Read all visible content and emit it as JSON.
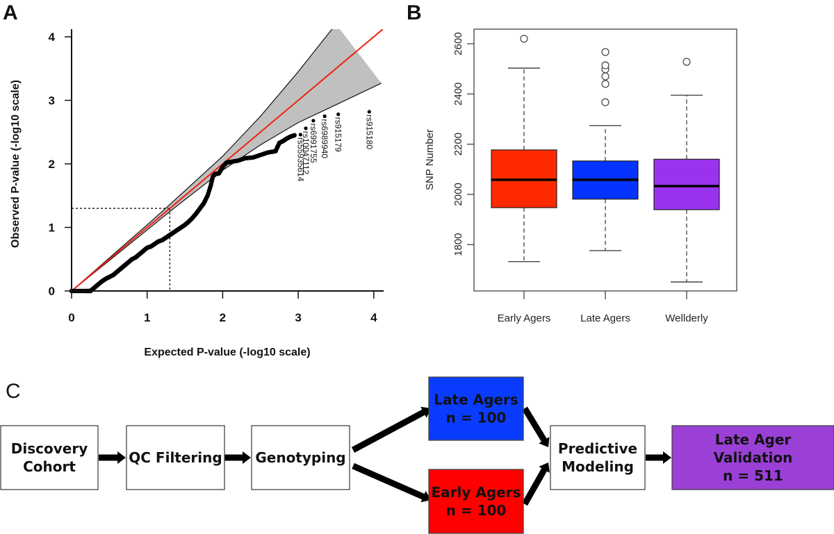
{
  "figure": {
    "panel_labels": [
      "A",
      "B",
      "C"
    ]
  },
  "chart_data": [
    {
      "panel": "A",
      "type": "scatter",
      "title": "",
      "xlabel": "Expected P-value (-log10 scale)",
      "ylabel": "Observed P-value (-log10 scale)",
      "xlim": [
        0,
        4.1
      ],
      "ylim": [
        0,
        4.2
      ],
      "xticks": [
        0,
        1,
        2,
        3,
        4
      ],
      "yticks": [
        0,
        1,
        2,
        3,
        4
      ],
      "grid": false,
      "reference_line": {
        "name": "expected y = x",
        "color": "#ee2211"
      },
      "confidence_band": {
        "fill": "#c0c0c0",
        "upper": [
          [
            0,
            0
          ],
          [
            1,
            1.04
          ],
          [
            1.3,
            1.36
          ],
          [
            2,
            2.12
          ],
          [
            2.5,
            2.75
          ],
          [
            3,
            3.45
          ],
          [
            3.5,
            4.2
          ]
        ],
        "lower": [
          [
            0,
            0
          ],
          [
            1,
            0.96
          ],
          [
            1.3,
            1.25
          ],
          [
            2,
            1.9
          ],
          [
            2.5,
            2.3
          ],
          [
            3,
            2.65
          ],
          [
            3.5,
            2.93
          ],
          [
            4.1,
            3.27
          ]
        ]
      },
      "threshold_guides": {
        "expected": 1.3,
        "observed": 1.3
      },
      "points": [
        [
          0.0,
          0.0
        ],
        [
          0.1,
          0.0
        ],
        [
          0.2,
          0.0
        ],
        [
          0.25,
          0.0
        ],
        [
          0.3,
          0.05
        ],
        [
          0.35,
          0.1
        ],
        [
          0.4,
          0.15
        ],
        [
          0.45,
          0.19
        ],
        [
          0.5,
          0.22
        ],
        [
          0.55,
          0.25
        ],
        [
          0.6,
          0.3
        ],
        [
          0.65,
          0.35
        ],
        [
          0.7,
          0.4
        ],
        [
          0.75,
          0.45
        ],
        [
          0.8,
          0.5
        ],
        [
          0.85,
          0.53
        ],
        [
          0.9,
          0.58
        ],
        [
          0.95,
          0.63
        ],
        [
          1.0,
          0.68
        ],
        [
          1.05,
          0.7
        ],
        [
          1.1,
          0.74
        ],
        [
          1.15,
          0.78
        ],
        [
          1.2,
          0.8
        ],
        [
          1.25,
          0.84
        ],
        [
          1.3,
          0.88
        ],
        [
          1.35,
          0.92
        ],
        [
          1.4,
          0.96
        ],
        [
          1.45,
          1.0
        ],
        [
          1.5,
          1.04
        ],
        [
          1.55,
          1.09
        ],
        [
          1.6,
          1.15
        ],
        [
          1.65,
          1.22
        ],
        [
          1.7,
          1.3
        ],
        [
          1.75,
          1.38
        ],
        [
          1.8,
          1.5
        ],
        [
          1.84,
          1.65
        ],
        [
          1.87,
          1.8
        ],
        [
          1.9,
          1.84
        ],
        [
          1.95,
          1.85
        ],
        [
          2.0,
          1.95
        ],
        [
          2.05,
          2.02
        ],
        [
          2.1,
          2.03
        ],
        [
          2.2,
          2.05
        ],
        [
          2.3,
          2.09
        ],
        [
          2.4,
          2.1
        ],
        [
          2.5,
          2.14
        ],
        [
          2.6,
          2.18
        ],
        [
          2.7,
          2.2
        ],
        [
          2.75,
          2.33
        ],
        [
          2.8,
          2.36
        ],
        [
          2.85,
          2.4
        ],
        [
          2.9,
          2.43
        ],
        [
          2.95,
          2.45
        ]
      ],
      "labeled_points": [
        {
          "label": "rs55935614",
          "x": 3.03,
          "y": 2.46
        },
        {
          "label": "rs10047112",
          "x": 3.1,
          "y": 2.56
        },
        {
          "label": "rs6991755",
          "x": 3.2,
          "y": 2.68
        },
        {
          "label": "rs6989940",
          "x": 3.35,
          "y": 2.75
        },
        {
          "label": "rs915179",
          "x": 3.53,
          "y": 2.78
        },
        {
          "label": "rs915180",
          "x": 3.94,
          "y": 2.82
        }
      ]
    },
    {
      "panel": "B",
      "type": "box",
      "title": "",
      "xlabel": "",
      "ylabel": "SNP Number",
      "ylim": [
        1630,
        2660
      ],
      "yticks": [
        1800,
        2000,
        2200,
        2400,
        2600
      ],
      "grid": false,
      "categories": [
        "Early Agers",
        "Late Agers",
        "Wellderly"
      ],
      "series": [
        {
          "name": "Early Agers",
          "color": "#ff2a00",
          "whisker_low": 1732,
          "q1": 1947,
          "median": 2058,
          "q3": 2177,
          "whisker_high": 2503,
          "outliers": [
            2620
          ]
        },
        {
          "name": "Late Agers",
          "color": "#0433ff",
          "whisker_low": 1776,
          "q1": 1981,
          "median": 2058,
          "q3": 2133,
          "whisker_high": 2274,
          "outliers": [
            2367,
            2440,
            2470,
            2498,
            2514,
            2567
          ]
        },
        {
          "name": "Wellderly",
          "color": "#9a33ee",
          "whisker_low": 1651,
          "q1": 1939,
          "median": 2033,
          "q3": 2140,
          "whisker_high": 2395,
          "outliers": [
            2528
          ]
        }
      ]
    }
  ],
  "flowchart": {
    "nodes": [
      {
        "id": "discovery",
        "lines": [
          "Discovery",
          "Cohort"
        ],
        "fill": "#ffffff"
      },
      {
        "id": "qc",
        "lines": [
          "QC Filtering"
        ],
        "fill": "#ffffff"
      },
      {
        "id": "genotyping",
        "lines": [
          "Genotyping"
        ],
        "fill": "#ffffff"
      },
      {
        "id": "late",
        "lines": [
          "Late Agers",
          "n = 100"
        ],
        "fill": "#0a3cff"
      },
      {
        "id": "early",
        "lines": [
          "Early Agers",
          "n = 100"
        ],
        "fill": "#ff0000"
      },
      {
        "id": "predictive",
        "lines": [
          "Predictive",
          "Modeling"
        ],
        "fill": "#ffffff"
      },
      {
        "id": "validation",
        "lines": [
          "Late Ager",
          "Validation",
          "n = 511"
        ],
        "fill": "#9a40d6"
      }
    ],
    "edges": [
      [
        "discovery",
        "qc"
      ],
      [
        "qc",
        "genotyping"
      ],
      [
        "genotyping",
        "late"
      ],
      [
        "genotyping",
        "early"
      ],
      [
        "late",
        "predictive"
      ],
      [
        "early",
        "predictive"
      ],
      [
        "predictive",
        "validation"
      ]
    ]
  }
}
